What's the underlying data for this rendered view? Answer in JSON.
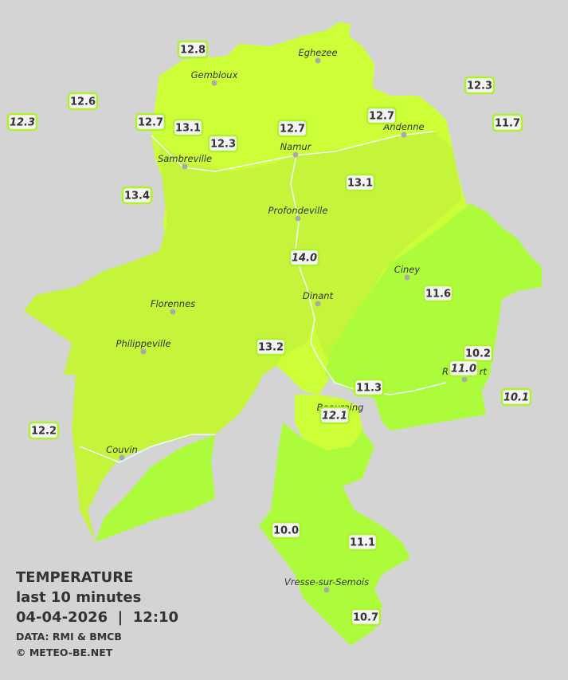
{
  "cities": [
    "Eghezee",
    "Gembloux",
    "Andenne",
    "Namur",
    "Sambreville",
    "Profondeville",
    "Ciney",
    "Dinant",
    "Florennes",
    "Philippeville",
    "Rochefort",
    "Beauraing",
    "Couvin",
    "Vresse-sur-Semois"
  ],
  "stations": [
    "12.8",
    "12.6",
    "12.3",
    "12.7",
    "13.1",
    "12.3",
    "12.7",
    "12.7",
    "12.3",
    "11.7",
    "13.4",
    "13.1",
    "14.0",
    "11.6",
    "13.2",
    "10.2",
    "11.0",
    "11.3",
    "10.1",
    "12.1",
    "12.2",
    "10.0",
    "11.1",
    "10.7"
  ],
  "legend": {
    "title": "TEMPERATURE",
    "period": "last 10 minutes",
    "datetime": "04-04-2026  |  12:10",
    "source": "DATA: RMI & BMCB",
    "credit": "© METEO-BE.NET"
  }
}
